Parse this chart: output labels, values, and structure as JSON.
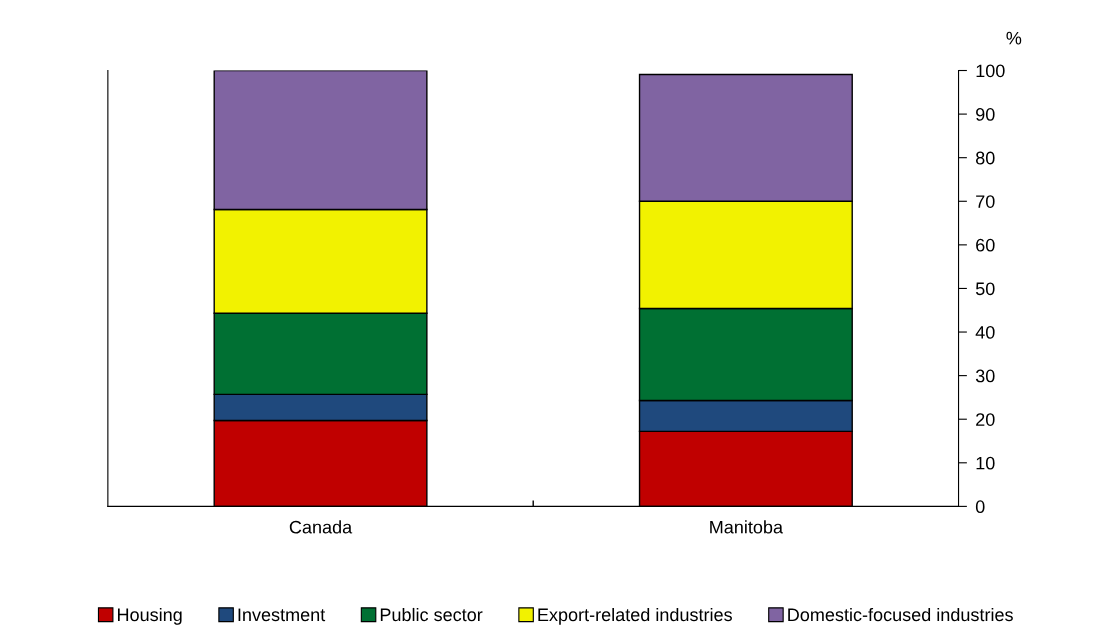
{
  "chart_data": {
    "type": "bar",
    "stacked": true,
    "categories": [
      "Canada",
      "Manitoba"
    ],
    "series": [
      {
        "name": "Housing",
        "color": "#c00000",
        "values": [
          19.7,
          17.2
        ]
      },
      {
        "name": "Investment",
        "color": "#1f497d",
        "values": [
          6.0,
          7.1
        ]
      },
      {
        "name": "Public sector",
        "color": "#007033",
        "values": [
          18.6,
          21.1
        ]
      },
      {
        "name": "Export-related industries",
        "color": "#f2f200",
        "values": [
          23.8,
          24.6
        ]
      },
      {
        "name": "Domestic-focused industries",
        "color": "#8064a2",
        "values": [
          31.9,
          29.1
        ]
      }
    ],
    "ylabel": "%",
    "ylim": [
      0,
      100
    ],
    "yticks": [
      0,
      10,
      20,
      30,
      40,
      50,
      60,
      70,
      80,
      90,
      100
    ],
    "grid": false,
    "legend": "bottom"
  }
}
